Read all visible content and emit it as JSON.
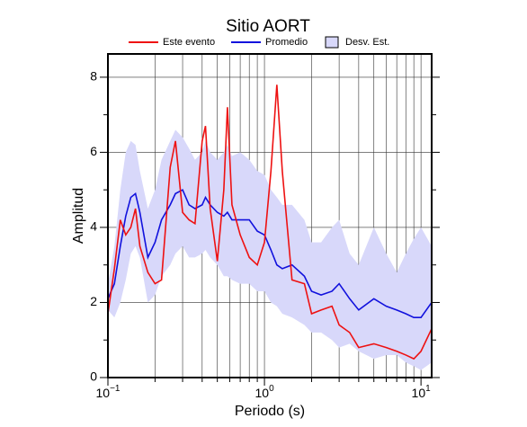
{
  "chart_data": {
    "type": "line",
    "title": "Sitio AORT",
    "xlabel": "Periodo (s)",
    "ylabel": "Amplitud",
    "xscale": "log",
    "xlim": [
      0.1,
      11.7
    ],
    "ylim": [
      0,
      8.62
    ],
    "xticks": [
      {
        "value": 0.1,
        "label": "10",
        "exponent": "−1"
      },
      {
        "value": 1,
        "label": "10",
        "exponent": "0"
      },
      {
        "value": 10,
        "label": "10",
        "exponent": "1"
      }
    ],
    "xminor": [
      0.2,
      0.3,
      0.4,
      0.5,
      0.6,
      0.7,
      0.8,
      0.9,
      2,
      3,
      4,
      5,
      6,
      7,
      8,
      9
    ],
    "yticks": [
      0,
      2,
      4,
      6,
      8
    ],
    "yminor": [
      1,
      3,
      5,
      7
    ],
    "grid": true,
    "x": [
      0.1,
      0.11,
      0.12,
      0.13,
      0.14,
      0.15,
      0.16,
      0.18,
      0.2,
      0.22,
      0.25,
      0.27,
      0.3,
      0.33,
      0.36,
      0.4,
      0.42,
      0.45,
      0.5,
      0.55,
      0.58,
      0.62,
      0.7,
      0.8,
      0.9,
      1.0,
      1.1,
      1.2,
      1.3,
      1.5,
      1.8,
      2.0,
      2.3,
      2.7,
      3,
      3.5,
      4,
      5,
      6,
      7,
      8,
      9,
      10,
      11.7
    ],
    "series": [
      {
        "name": "Este evento",
        "color": "#ee1111",
        "values": [
          1.7,
          2.9,
          4.2,
          3.8,
          4.0,
          4.5,
          3.5,
          2.8,
          2.5,
          2.6,
          5.6,
          6.3,
          4.4,
          4.2,
          4.1,
          6.3,
          6.7,
          4.5,
          3.1,
          5.0,
          7.2,
          4.6,
          3.8,
          3.2,
          3.0,
          3.6,
          5.5,
          7.8,
          5.5,
          2.6,
          2.5,
          1.7,
          1.8,
          1.9,
          1.4,
          1.2,
          0.8,
          0.9,
          0.8,
          0.7,
          0.6,
          0.5,
          0.7,
          1.3
        ]
      },
      {
        "name": "Promedio",
        "color": "#1111dd",
        "values": [
          2.1,
          2.5,
          3.5,
          4.3,
          4.8,
          4.9,
          4.4,
          3.2,
          3.6,
          4.2,
          4.6,
          4.9,
          5.0,
          4.6,
          4.5,
          4.6,
          4.8,
          4.6,
          4.4,
          4.3,
          4.4,
          4.2,
          4.2,
          4.2,
          3.9,
          3.8,
          3.4,
          3.0,
          2.9,
          3.0,
          2.7,
          2.3,
          2.2,
          2.3,
          2.5,
          2.1,
          1.8,
          2.1,
          1.9,
          1.8,
          1.7,
          1.6,
          1.6,
          2.0
        ]
      },
      {
        "name": "Desv. Est.",
        "type": "band",
        "color": "#d8d8fa",
        "upper": [
          2.5,
          3.5,
          5.0,
          6.0,
          6.3,
          6.2,
          5.5,
          4.5,
          5.0,
          5.8,
          6.3,
          6.6,
          6.4,
          6.1,
          5.8,
          6.0,
          6.3,
          6.0,
          5.8,
          6.0,
          6.2,
          5.9,
          6.0,
          5.8,
          5.5,
          5.4,
          5.0,
          4.8,
          4.6,
          4.6,
          4.2,
          3.6,
          3.6,
          4.0,
          4.2,
          3.3,
          3.0,
          4.0,
          3.3,
          2.8,
          3.3,
          3.7,
          4.0,
          3.5
        ],
        "lower": [
          1.8,
          1.6,
          2.0,
          2.6,
          3.3,
          3.5,
          3.2,
          2.0,
          2.2,
          2.7,
          3.0,
          3.3,
          3.5,
          3.2,
          3.2,
          3.3,
          3.4,
          3.2,
          3.0,
          2.7,
          2.7,
          2.6,
          2.5,
          2.5,
          2.3,
          2.3,
          2.0,
          1.9,
          1.7,
          1.6,
          1.4,
          1.2,
          1.2,
          1.0,
          0.8,
          0.9,
          0.7,
          0.5,
          0.6,
          0.6,
          0.4,
          0.3,
          0.2,
          0.4
        ]
      }
    ]
  }
}
